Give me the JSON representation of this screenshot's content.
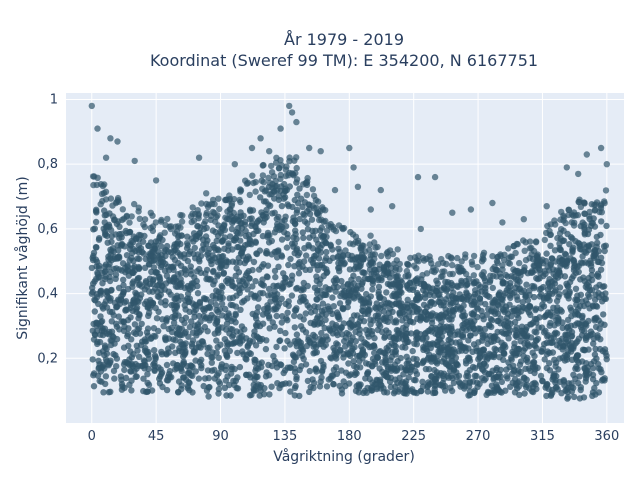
{
  "chart_data": {
    "type": "scatter",
    "title_line1": "År 1979 - 2019",
    "title_line2": "Koordinat (Sweref 99 TM): E 354200, N 6167751",
    "xlabel": "Vågriktning (grader)",
    "ylabel": "Signifikant våghöjd (m)",
    "xlim": [
      -18,
      372
    ],
    "ylim": [
      0.0,
      1.02
    ],
    "x_ticks": [
      0,
      45,
      90,
      135,
      180,
      225,
      270,
      315,
      360
    ],
    "x_tick_labels": [
      "0",
      "45",
      "90",
      "135",
      "180",
      "225",
      "270",
      "315",
      "360"
    ],
    "y_ticks": [
      0.2,
      0.4,
      0.6,
      0.8,
      1.0
    ],
    "y_tick_labels": [
      "0,2",
      "0,4",
      "0,6",
      "0,8",
      "1"
    ],
    "grid": true,
    "legend": "none",
    "marker_color": "#30566b",
    "plot_bg": "#e5ecf6",
    "envelope": {
      "x": [
        0,
        10,
        20,
        30,
        45,
        60,
        75,
        90,
        105,
        120,
        135,
        145,
        155,
        165,
        180,
        195,
        210,
        225,
        240,
        255,
        270,
        285,
        300,
        315,
        330,
        340,
        350,
        360
      ],
      "y_low": [
        0.1,
        0.09,
        0.1,
        0.1,
        0.09,
        0.09,
        0.08,
        0.08,
        0.08,
        0.08,
        0.08,
        0.08,
        0.09,
        0.09,
        0.09,
        0.09,
        0.09,
        0.09,
        0.09,
        0.09,
        0.08,
        0.08,
        0.08,
        0.08,
        0.07,
        0.07,
        0.08,
        0.1
      ],
      "y_high": [
        0.7,
        0.66,
        0.61,
        0.6,
        0.57,
        0.56,
        0.6,
        0.62,
        0.66,
        0.72,
        0.76,
        0.74,
        0.64,
        0.58,
        0.52,
        0.5,
        0.47,
        0.45,
        0.44,
        0.44,
        0.45,
        0.45,
        0.48,
        0.53,
        0.58,
        0.62,
        0.64,
        0.64
      ]
    },
    "outliers": [
      {
        "x": 0,
        "y": 0.98
      },
      {
        "x": 4,
        "y": 0.91
      },
      {
        "x": 13,
        "y": 0.88
      },
      {
        "x": 18,
        "y": 0.87
      },
      {
        "x": 10,
        "y": 0.82
      },
      {
        "x": 30,
        "y": 0.81
      },
      {
        "x": 45,
        "y": 0.75
      },
      {
        "x": 75,
        "y": 0.82
      },
      {
        "x": 80,
        "y": 0.71
      },
      {
        "x": 100,
        "y": 0.8
      },
      {
        "x": 112,
        "y": 0.85
      },
      {
        "x": 118,
        "y": 0.88
      },
      {
        "x": 124,
        "y": 0.84
      },
      {
        "x": 132,
        "y": 0.91
      },
      {
        "x": 138,
        "y": 0.98
      },
      {
        "x": 140,
        "y": 0.96
      },
      {
        "x": 143,
        "y": 0.93
      },
      {
        "x": 152,
        "y": 0.85
      },
      {
        "x": 160,
        "y": 0.84
      },
      {
        "x": 170,
        "y": 0.72
      },
      {
        "x": 180,
        "y": 0.85
      },
      {
        "x": 183,
        "y": 0.79
      },
      {
        "x": 186,
        "y": 0.73
      },
      {
        "x": 195,
        "y": 0.66
      },
      {
        "x": 202,
        "y": 0.72
      },
      {
        "x": 210,
        "y": 0.67
      },
      {
        "x": 228,
        "y": 0.76
      },
      {
        "x": 240,
        "y": 0.76
      },
      {
        "x": 230,
        "y": 0.6
      },
      {
        "x": 252,
        "y": 0.65
      },
      {
        "x": 265,
        "y": 0.66
      },
      {
        "x": 280,
        "y": 0.68
      },
      {
        "x": 287,
        "y": 0.62
      },
      {
        "x": 302,
        "y": 0.63
      },
      {
        "x": 318,
        "y": 0.67
      },
      {
        "x": 332,
        "y": 0.79
      },
      {
        "x": 340,
        "y": 0.77
      },
      {
        "x": 346,
        "y": 0.83
      },
      {
        "x": 356,
        "y": 0.85
      },
      {
        "x": 360,
        "y": 0.8
      }
    ]
  }
}
